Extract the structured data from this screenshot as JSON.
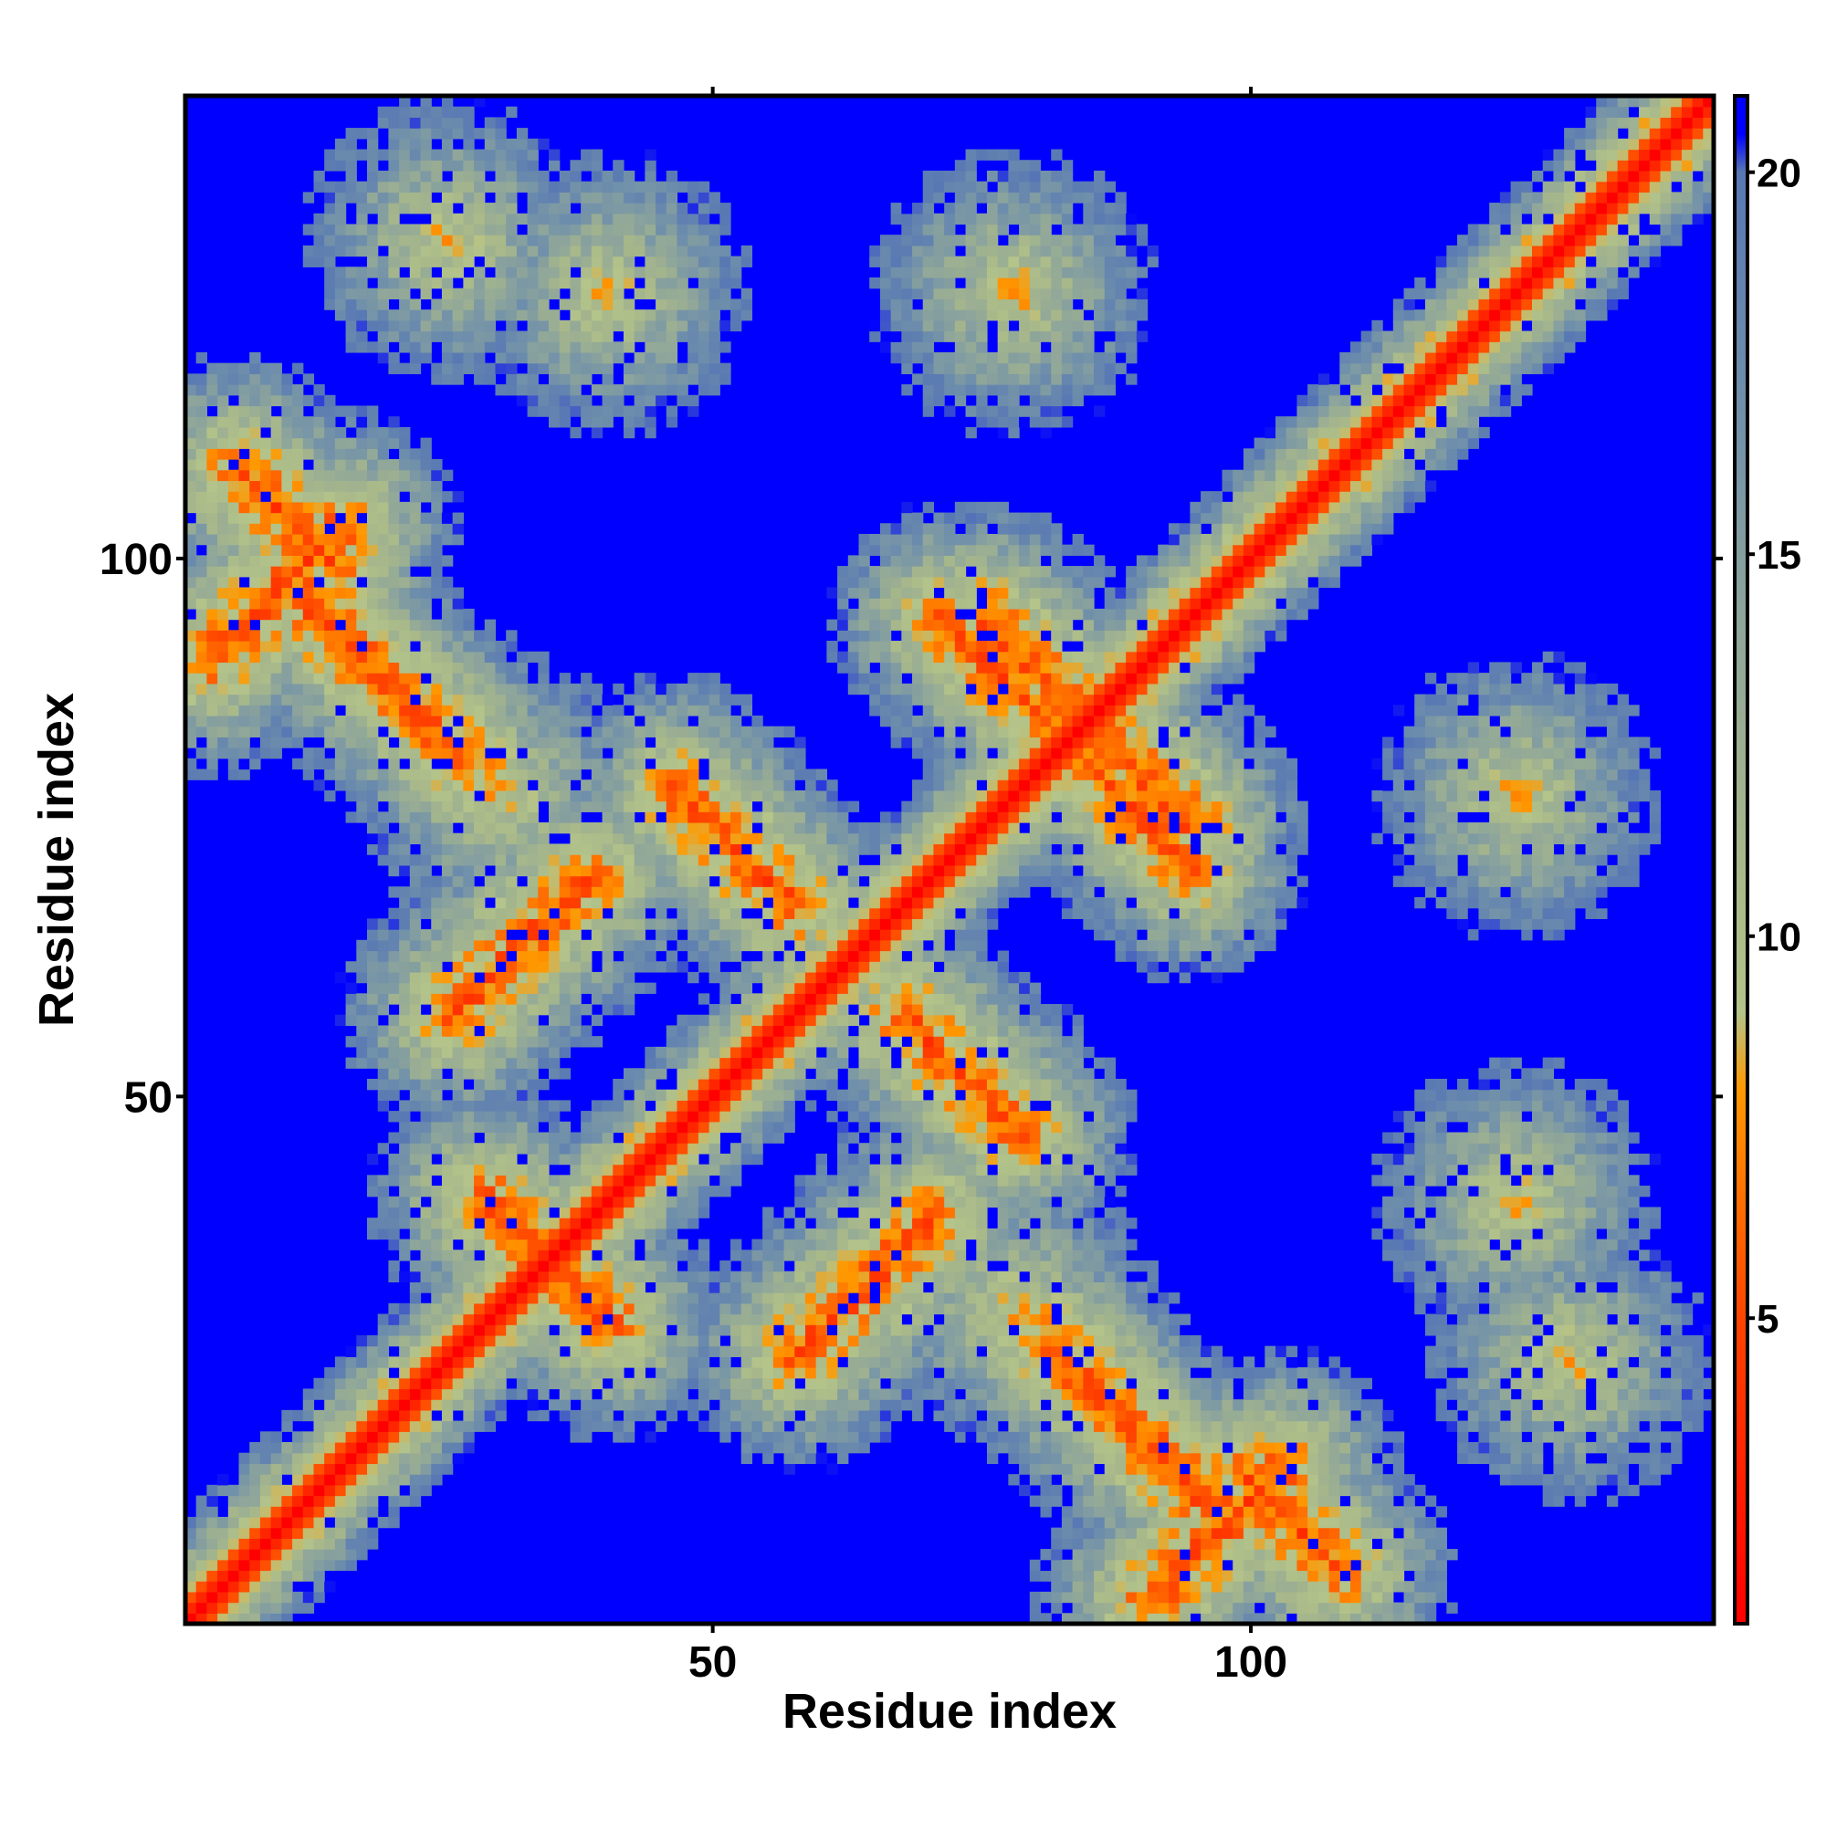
{
  "chart_data": {
    "type": "heatmap",
    "title": "",
    "xlabel": "Residue index",
    "ylabel": "Residue index",
    "n_residues": 143,
    "x_range": [
      1,
      143
    ],
    "y_range": [
      1,
      143
    ],
    "x_ticks": [
      50,
      100
    ],
    "y_ticks": [
      50,
      100
    ],
    "colorbar": {
      "range": [
        1,
        21
      ],
      "ticks": [
        5,
        10,
        15,
        20
      ],
      "cap_value": 21,
      "stops": [
        {
          "value": 1,
          "color": "#ff0000"
        },
        {
          "value": 5,
          "color": "#ff4400"
        },
        {
          "value": 8,
          "color": "#ff9900"
        },
        {
          "value": 9,
          "color": "#b4c48a"
        },
        {
          "value": 11,
          "color": "#a8b88a"
        },
        {
          "value": 14,
          "color": "#8fa69a"
        },
        {
          "value": 17,
          "color": "#6f8fab"
        },
        {
          "value": 20,
          "color": "#5878b4"
        },
        {
          "value": 20.5,
          "color": "#0000ff"
        },
        {
          "value": 21,
          "color": "#0000ff"
        }
      ]
    },
    "contact_features": [
      {
        "kind": "diagonal",
        "from": 1,
        "to": 143
      },
      {
        "kind": "antiparallel",
        "center": [
          89,
          19
        ],
        "span": 18
      },
      {
        "kind": "antiparallel",
        "center": [
          90,
          80
        ],
        "span": 10
      },
      {
        "kind": "antiparallel",
        "center": [
          52,
          73
        ],
        "span": 12
      },
      {
        "kind": "antiparallel",
        "center": [
          76,
          90
        ],
        "span": 10
      },
      {
        "kind": "antiparallel",
        "center": [
          104,
          10
        ],
        "span": 10
      },
      {
        "kind": "antiparallel",
        "center": [
          33,
          36
        ],
        "span": 10
      },
      {
        "kind": "parallel",
        "center": [
          9,
          97
        ],
        "span": 14
      },
      {
        "kind": "parallel",
        "center": [
          64,
          32
        ],
        "span": 14
      },
      {
        "kind": "cluster",
        "center": [
          40,
          125
        ]
      },
      {
        "kind": "cluster",
        "center": [
          120,
          35
        ]
      },
      {
        "kind": "cluster",
        "center": [
          30,
          78
        ]
      },
      {
        "kind": "cluster",
        "center": [
          78,
          30
        ]
      },
      {
        "kind": "cluster",
        "center": [
          125,
          78
        ]
      },
      {
        "kind": "cluster",
        "center": [
          78,
          125
        ]
      },
      {
        "kind": "cluster",
        "center": [
          130,
          25
        ]
      },
      {
        "kind": "cluster",
        "center": [
          25,
          130
        ]
      }
    ]
  }
}
